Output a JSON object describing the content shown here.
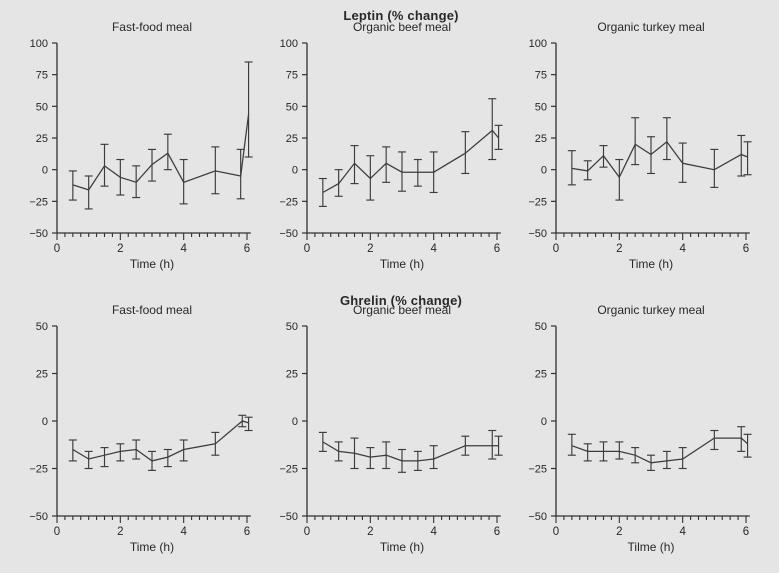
{
  "figure": {
    "background": "#e4e5e4",
    "text_color": "#26282a",
    "axis_color": "#2f3133",
    "line_color": "#3a3c3e"
  },
  "chart_data": {
    "type": "line",
    "x_axis": {
      "xlim": [
        0,
        6.12
      ],
      "xticks": [
        0,
        2,
        4,
        6
      ],
      "x_minor_step": 0.25
    },
    "rows": [
      {
        "title": "Leptin (% change)",
        "ylim": [
          -50,
          100
        ],
        "yticks": [
          100,
          75,
          50,
          25,
          0,
          -25,
          -50
        ],
        "panels": [
          {
            "title": "Fast-food meal",
            "xlabel": "Time (h)",
            "x": [
              0.5,
              1,
              1.5,
              2,
              2.5,
              3,
              3.5,
              4,
              5,
              5.8,
              6.05
            ],
            "y": [
              -12,
              -16,
              3,
              -6,
              -10,
              4,
              13,
              -10,
              -1,
              -5,
              44
            ],
            "lo": [
              -24,
              -31,
              -13,
              -20,
              -22,
              -9,
              0,
              -27,
              -19,
              -23,
              10
            ],
            "hi": [
              -1,
              -5,
              20,
              8,
              3,
              16,
              28,
              8,
              18,
              16,
              85
            ]
          },
          {
            "title": "Organic beef meal",
            "xlabel": "Time (h)",
            "x": [
              0.5,
              1,
              1.5,
              2,
              2.5,
              3,
              3.5,
              4,
              5,
              5.85,
              6.05
            ],
            "y": [
              -18,
              -11,
              5,
              -7,
              5,
              -2,
              -2,
              -2,
              13,
              31,
              25
            ],
            "lo": [
              -29,
              -21,
              -11,
              -24,
              -10,
              -17,
              -13,
              -18,
              -3,
              8,
              16
            ],
            "hi": [
              -7,
              0,
              19,
              11,
              18,
              14,
              8,
              14,
              30,
              56,
              35
            ]
          },
          {
            "title": "Organic turkey meal",
            "xlabel": "Time (h)",
            "x": [
              0.5,
              1,
              1.5,
              2,
              2.5,
              3,
              3.5,
              4,
              5,
              5.85,
              6.05
            ],
            "y": [
              1,
              -1,
              11,
              -6,
              20,
              12,
              22,
              5,
              0,
              12,
              10
            ],
            "lo": [
              -12,
              -8,
              2,
              -24,
              4,
              -3,
              8,
              -10,
              -14,
              -5,
              -4
            ],
            "hi": [
              15,
              7,
              19,
              8,
              41,
              26,
              41,
              21,
              16,
              27,
              22
            ]
          }
        ]
      },
      {
        "title": "Ghrelin (% change)",
        "ylim": [
          -50,
          50
        ],
        "yticks": [
          50,
          25,
          0,
          -25,
          -50
        ],
        "panels": [
          {
            "title": "Fast-food meal",
            "xlabel": "Time (h)",
            "x": [
              0.5,
              1,
              1.5,
              2,
              2.5,
              3,
              3.5,
              4,
              5,
              5.85,
              6.05
            ],
            "y": [
              -15,
              -20,
              -18,
              -16,
              -15,
              -21,
              -19,
              -15,
              -12,
              0,
              -1
            ],
            "lo": [
              -21,
              -25,
              -24,
              -21,
              -20,
              -26,
              -24,
              -21,
              -18,
              -3,
              -5
            ],
            "hi": [
              -10,
              -16,
              -14,
              -12,
              -10,
              -16,
              -15,
              -10,
              -6,
              3,
              2
            ]
          },
          {
            "title": "Organic beef meal",
            "xlabel": "Time (h)",
            "x": [
              0.5,
              1,
              1.5,
              2,
              2.5,
              3,
              3.5,
              4,
              5,
              5.85,
              6.05
            ],
            "y": [
              -11,
              -16,
              -17,
              -19,
              -18,
              -21,
              -21,
              -20,
              -13,
              -13,
              -13
            ],
            "lo": [
              -16,
              -21,
              -25,
              -25,
              -25,
              -27,
              -26,
              -25,
              -18,
              -20,
              -18
            ],
            "hi": [
              -6,
              -11,
              -9,
              -14,
              -11,
              -15,
              -16,
              -13,
              -8,
              -5,
              -8
            ]
          },
          {
            "title": "Organic turkey meal",
            "xlabel": "Tilme (h)",
            "x": [
              0.5,
              1,
              1.5,
              2,
              2.5,
              3,
              3.5,
              4,
              5,
              5.85,
              6.05
            ],
            "y": [
              -13,
              -16,
              -16,
              -16,
              -18,
              -22,
              -21,
              -20,
              -9,
              -9,
              -12
            ],
            "lo": [
              -18,
              -21,
              -21,
              -20,
              -22,
              -26,
              -25,
              -25,
              -15,
              -16,
              -19
            ],
            "hi": [
              -7,
              -12,
              -11,
              -11,
              -14,
              -18,
              -16,
              -14,
              -5,
              -3,
              -7
            ]
          }
        ]
      }
    ]
  }
}
